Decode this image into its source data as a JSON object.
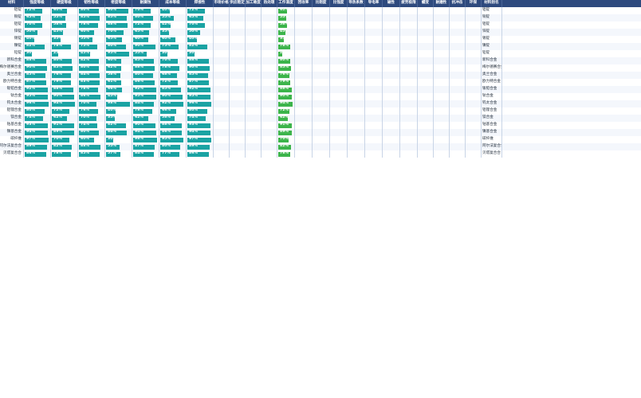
{
  "header_labels": {
    "material": "材料",
    "strength": "强度等级",
    "hardness": "硬度等级",
    "toughness": "韧性等级",
    "density": "密度等级",
    "corrosion": "耐腐蚀",
    "cost": "成本等级",
    "weldability": "焊接性",
    "colA": "市场价格",
    "colB": "供应稳定",
    "colC": "加工难度",
    "colD": "热处理",
    "colE": "工作温度",
    "colF": "回收率",
    "colG": "比刚度",
    "colH": "比强度",
    "colI": "导热系数",
    "colJ": "导电率",
    "colK": "磁性",
    "colL": "疲劳极限",
    "colM": "蠕变",
    "colN": "耐磨性",
    "colO": "抗冲击",
    "colP": "环保",
    "colQ": "材料别名"
  },
  "sections": [
    {
      "rows": [
        {
          "name": "铝锭",
          "alias": "铝锭",
          "strength": 72,
          "hardness": 60,
          "toughness": 80,
          "density": 90,
          "corrosion": 70,
          "cost": 40
        },
        {
          "name": "铜锭",
          "alias": "铜锭",
          "strength": 65,
          "hardness": 55,
          "toughness": 85,
          "density": 85,
          "corrosion": 80,
          "cost": 55
        },
        {
          "name": "铝锭",
          "alias": "铝锭",
          "strength": 70,
          "hardness": 58,
          "toughness": 78,
          "density": 88,
          "corrosion": 72,
          "cost": 42
        },
        {
          "name": "锌锭",
          "alias": "锌锭",
          "strength": 50,
          "hardness": 45,
          "toughness": 60,
          "density": 70,
          "corrosion": 65,
          "cost": 35
        },
        {
          "name": "锡锭",
          "alias": "锡锭",
          "strength": 40,
          "hardness": 35,
          "toughness": 55,
          "density": 65,
          "corrosion": 60,
          "cost": 60
        },
        {
          "name": "镍锭",
          "alias": "镍锭",
          "strength": 82,
          "hardness": 78,
          "toughness": 75,
          "density": 80,
          "corrosion": 90,
          "cost": 75
        },
        {
          "name": "铅锭",
          "alias": "铅锭",
          "strength": 30,
          "hardness": 25,
          "toughness": 45,
          "density": 95,
          "corrosion": 55,
          "cost": 30
        },
        {
          "name": "新科合金",
          "alias": "新科合金",
          "strength": 88,
          "hardness": 80,
          "toughness": 82,
          "density": 60,
          "corrosion": 85,
          "cost": 70
        },
        {
          "name": "梅尔德赛合金",
          "alias": "梅尔德赛合金",
          "strength": 90,
          "hardness": 85,
          "toughness": 80,
          "density": 62,
          "corrosion": 88,
          "cost": 78
        },
        {
          "name": "奥兰合金",
          "alias": "奥兰合金",
          "strength": 85,
          "hardness": 76,
          "toughness": 84,
          "density": 58,
          "corrosion": 80,
          "cost": 68
        },
        {
          "name": "欧力特合金",
          "alias": "欧力特合金",
          "strength": 87,
          "hardness": 79,
          "toughness": 83,
          "density": 61,
          "corrosion": 86,
          "cost": 72
        },
        {
          "name": "钣铂合金",
          "alias": "钣铂合金",
          "strength": 92,
          "hardness": 88,
          "toughness": 78,
          "density": 66,
          "corrosion": 92,
          "cost": 85
        },
        {
          "name": "钛合金",
          "alias": "钛合金",
          "strength": 95,
          "hardness": 90,
          "toughness": 86,
          "density": 45,
          "corrosion": 95,
          "cost": 90
        },
        {
          "name": "钨太合金",
          "alias": "钨太合金",
          "strength": 96,
          "hardness": 94,
          "toughness": 70,
          "density": 98,
          "corrosion": 84,
          "cost": 92
        },
        {
          "name": "铝锂合金",
          "alias": "铝锂合金",
          "strength": 80,
          "hardness": 72,
          "toughness": 76,
          "density": 40,
          "corrosion": 78,
          "cost": 66
        },
        {
          "name": "镁合金",
          "alias": "镁合金",
          "strength": 74,
          "hardness": 62,
          "toughness": 70,
          "density": 35,
          "corrosion": 62,
          "cost": 58
        },
        {
          "name": "钴基合金",
          "alias": "钴基合金",
          "strength": 93,
          "hardness": 91,
          "toughness": 74,
          "density": 82,
          "corrosion": 90,
          "cost": 88
        },
        {
          "name": "镍基合金",
          "alias": "镍基合金",
          "strength": 94,
          "hardness": 89,
          "toughness": 80,
          "density": 84,
          "corrosion": 94,
          "cost": 86
        },
        {
          "name": "碳纤维",
          "alias": "碳纤维",
          "strength": 97,
          "hardness": 70,
          "toughness": 60,
          "density": 30,
          "corrosion": 98,
          "cost": 95
        },
        {
          "name": "阿尔法复合合",
          "alias": "阿尔法复合合",
          "strength": 89,
          "hardness": 82,
          "toughness": 88,
          "density": 55,
          "corrosion": 87,
          "cost": 80
        },
        {
          "name": "贝塔复合合",
          "alias": "贝塔复合合",
          "strength": 86,
          "hardness": 78,
          "toughness": 85,
          "density": 57,
          "corrosion": 84,
          "cost": 77
        }
      ]
    }
  ]
}
